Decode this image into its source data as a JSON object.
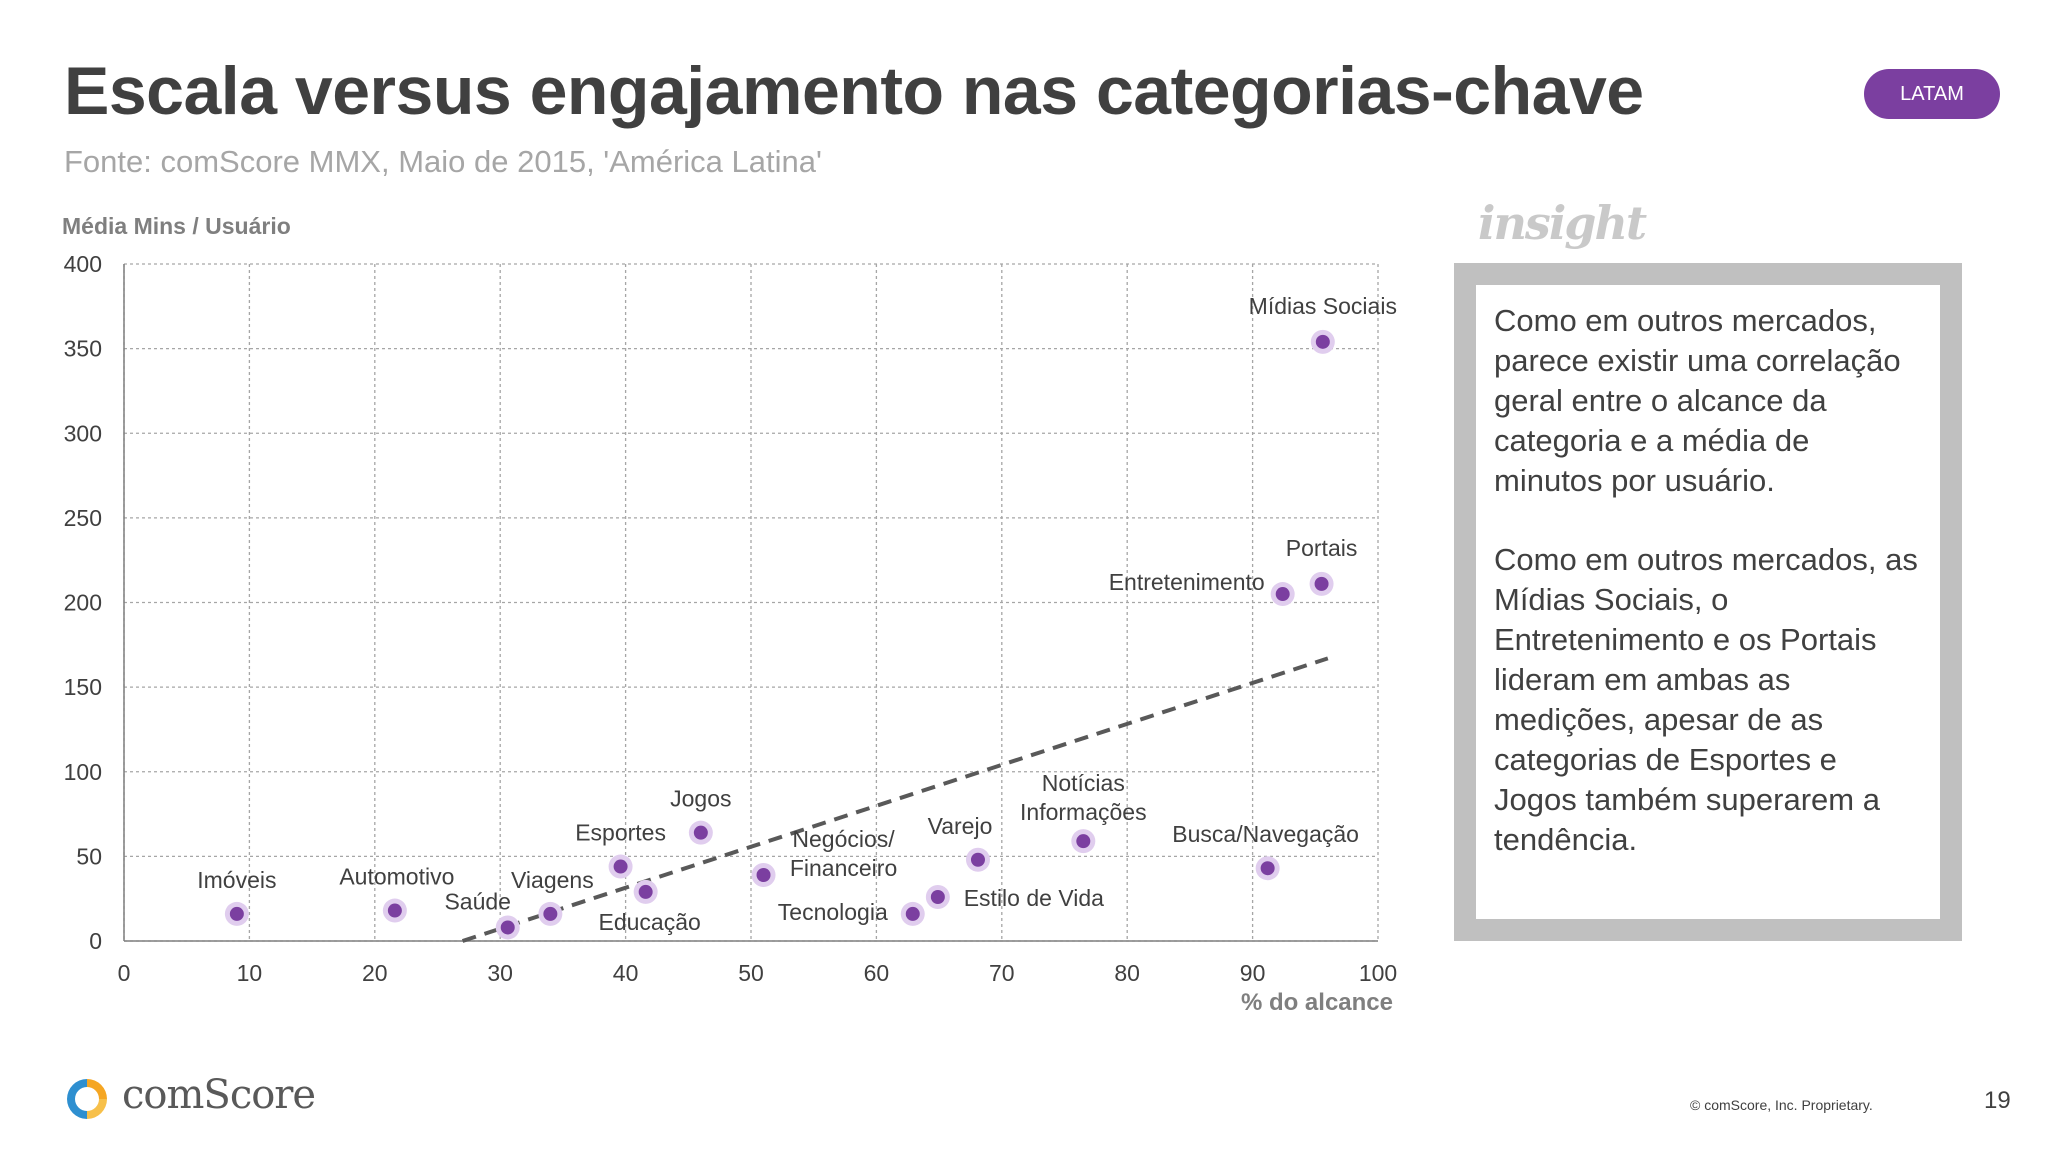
{
  "header": {
    "title": "Escala versus engajamento nas categorias-chave",
    "subtitle": "Fonte: comScore MMX, Maio de 2015, 'América Latina'",
    "badge": "LATAM"
  },
  "colors": {
    "point": "#7b3fa0",
    "point_halo": "#e0cdee",
    "badge": "#7b3fa0",
    "trendline": "#595959",
    "grid": "#a6a6a6"
  },
  "chart_data": {
    "type": "scatter",
    "ylabel": "Média  Mins / Usuário",
    "xlabel": "% do alcance",
    "xlim": [
      0,
      100
    ],
    "ylim": [
      0,
      400
    ],
    "x_ticks": [
      "0",
      "10",
      "20",
      "30",
      "40",
      "50",
      "60",
      "70",
      "80",
      "90",
      "100"
    ],
    "y_ticks": [
      "0",
      "50",
      "100",
      "150",
      "200",
      "250",
      "300",
      "350",
      "400"
    ],
    "grid": true,
    "points": [
      {
        "label": "Imóveis",
        "x": 9,
        "y": 16
      },
      {
        "label": "Automotivo",
        "x": 21.6,
        "y": 18
      },
      {
        "label": "Saúde",
        "x": 30.6,
        "y": 8
      },
      {
        "label": "Viagens",
        "x": 34,
        "y": 16
      },
      {
        "label": "Esportes",
        "x": 39.6,
        "y": 44
      },
      {
        "label": "Educação",
        "x": 41.6,
        "y": 29
      },
      {
        "label": "Jogos",
        "x": 46,
        "y": 64
      },
      {
        "label": "Negócios/ Financeiro",
        "x": 51,
        "y": 39
      },
      {
        "label": "Tecnologia",
        "x": 62.9,
        "y": 16
      },
      {
        "label": "Estilo de Vida",
        "x": 64.9,
        "y": 26
      },
      {
        "label": "Varejo",
        "x": 68.1,
        "y": 48
      },
      {
        "label": "Notícias Informações",
        "x": 76.5,
        "y": 59
      },
      {
        "label": "Busca/Navegação",
        "x": 91.2,
        "y": 43
      },
      {
        "label": "Entretenimento",
        "x": 92.4,
        "y": 205
      },
      {
        "label": "Portais",
        "x": 95.5,
        "y": 211
      },
      {
        "label": "Mídias Sociais",
        "x": 95.6,
        "y": 354
      }
    ],
    "trendline": {
      "style": "dashed",
      "from": [
        27,
        0
      ],
      "to": [
        96,
        167
      ]
    }
  },
  "insight": {
    "heading": "insight",
    "paragraphs": [
      "Como em outros mercados, parece existir uma correlação geral entre o alcance da categoria e a média de minutos por usuário.",
      "Como em outros mercados, as Mídias Sociais, o Entretenimento e os Portais lideram em ambas as medições, apesar de as categorias de Esportes e Jogos também superarem a tendência."
    ]
  },
  "footer": {
    "logo_text": "comScore",
    "copyright": "© comScore, Inc. Proprietary.",
    "page_number": "19"
  }
}
